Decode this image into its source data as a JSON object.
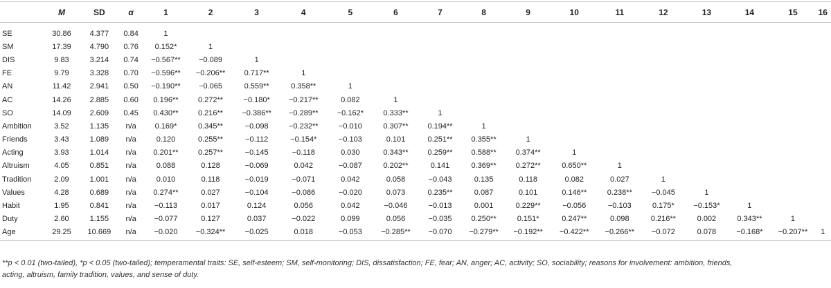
{
  "table": {
    "headers": [
      "",
      "M",
      "SD",
      "α",
      "1",
      "2",
      "3",
      "4",
      "5",
      "6",
      "7",
      "8",
      "9",
      "10",
      "11",
      "12",
      "13",
      "14",
      "15",
      "16"
    ],
    "rows": [
      [
        "SE",
        "30.86",
        "4.377",
        "0.84",
        "1",
        "",
        "",
        "",
        "",
        "",
        "",
        "",
        "",
        "",
        "",
        "",
        "",
        "",
        "",
        ""
      ],
      [
        "SM",
        "17.39",
        "4.790",
        "0.76",
        "0.152*",
        "1",
        "",
        "",
        "",
        "",
        "",
        "",
        "",
        "",
        "",
        "",
        "",
        "",
        "",
        ""
      ],
      [
        "DIS",
        "9.83",
        "3.214",
        "0.74",
        "−0.567**",
        "−0.089",
        "1",
        "",
        "",
        "",
        "",
        "",
        "",
        "",
        "",
        "",
        "",
        "",
        "",
        ""
      ],
      [
        "FE",
        "9.79",
        "3.328",
        "0.70",
        "−0.596**",
        "−0.206**",
        "0.717**",
        "1",
        "",
        "",
        "",
        "",
        "",
        "",
        "",
        "",
        "",
        "",
        "",
        ""
      ],
      [
        "AN",
        "11.42",
        "2.941",
        "0.50",
        "−0.190**",
        "−0.065",
        "0.559**",
        "0.358**",
        "1",
        "",
        "",
        "",
        "",
        "",
        "",
        "",
        "",
        "",
        "",
        ""
      ],
      [
        "AC",
        "14.26",
        "2.885",
        "0.60",
        "0.196**",
        "0.272**",
        "−0.180*",
        "−0.217**",
        "0.082",
        "1",
        "",
        "",
        "",
        "",
        "",
        "",
        "",
        "",
        "",
        ""
      ],
      [
        "SO",
        "14.09",
        "2.609",
        "0.45",
        "0.430**",
        "0.216**",
        "−0.386**",
        "−0.289**",
        "−0.162*",
        "0.333**",
        "1",
        "",
        "",
        "",
        "",
        "",
        "",
        "",
        "",
        ""
      ],
      [
        "Ambition",
        "3.52",
        "1.135",
        "n/a",
        "0.169*",
        "0.345**",
        "−0.098",
        "−0.232**",
        "−0.010",
        "0.307**",
        "0.194**",
        "1",
        "",
        "",
        "",
        "",
        "",
        "",
        "",
        ""
      ],
      [
        "Friends",
        "3.43",
        "1.089",
        "n/a",
        "0.120",
        "0.255**",
        "−0.112",
        "−0.154*",
        "−0.103",
        "0.101",
        "0.251**",
        "0.355**",
        "1",
        "",
        "",
        "",
        "",
        "",
        "",
        ""
      ],
      [
        "Acting",
        "3.93",
        "1.014",
        "n/a",
        "0.201**",
        "0.257**",
        "−0.145",
        "−0.118",
        "0.030",
        "0.343**",
        "0.259**",
        "0.588**",
        "0.374**",
        "1",
        "",
        "",
        "",
        "",
        "",
        ""
      ],
      [
        "Altruism",
        "4.05",
        "0.851",
        "n/a",
        "0.088",
        "0.128",
        "−0.069",
        "0.042",
        "−0.087",
        "0.202**",
        "0.141",
        "0.369**",
        "0.272**",
        "0.650**",
        "1",
        "",
        "",
        "",
        "",
        ""
      ],
      [
        "Tradition",
        "2.09",
        "1.001",
        "n/a",
        "0.010",
        "0.118",
        "−0.019",
        "−0.071",
        "0.042",
        "0.058",
        "−0.043",
        "0.135",
        "0.118",
        "0.082",
        "0.027",
        "1",
        "",
        "",
        "",
        ""
      ],
      [
        "Values",
        "4.28",
        "0.689",
        "n/a",
        "0.274**",
        "0.027",
        "−0.104",
        "−0.086",
        "−0.020",
        "0.073",
        "0.235**",
        "0.087",
        "0.101",
        "0.146**",
        "0.238**",
        "−0.045",
        "1",
        "",
        "",
        ""
      ],
      [
        "Habit",
        "1.95",
        "0.841",
        "n/a",
        "−0.113",
        "0.017",
        "0.124",
        "0.056",
        "0.042",
        "−0.046",
        "−0.013",
        "0.001",
        "0.229**",
        "−0.056",
        "−0.103",
        "0.175*",
        "−0.153*",
        "1",
        "",
        ""
      ],
      [
        "Duty",
        "2.60",
        "1.155",
        "n/a",
        "−0.077",
        "0.127",
        "0.037",
        "−0.022",
        "0.099",
        "0.056",
        "−0.035",
        "0.250**",
        "0.151*",
        "0.247**",
        "0.098",
        "0.216**",
        "0.002",
        "0.343**",
        "1",
        ""
      ],
      [
        "Age",
        "29.25",
        "10.669",
        "n/a",
        "−0.020",
        "−0.324**",
        "−0.025",
        "0.018",
        "−0.053",
        "−0.285**",
        "−0.070",
        "−0.279**",
        "−0.192**",
        "−0.422**",
        "−0.266**",
        "−0.072",
        "0.078",
        "−0.168*",
        "−0.207**",
        "1"
      ]
    ]
  },
  "note": {
    "line1": "**p < 0.01 (two-tailed), *p < 0.05 (two-tailed); temperamental traits: SE, self-esteem; SM, self-monitoring; DIS, dissatisfaction; FE, fear; AN, anger; AC, activity; SO, sociability; reasons for involvement: ambition, friends,",
    "line2": "acting, altruism, family tradition, values, and sense of duty."
  }
}
